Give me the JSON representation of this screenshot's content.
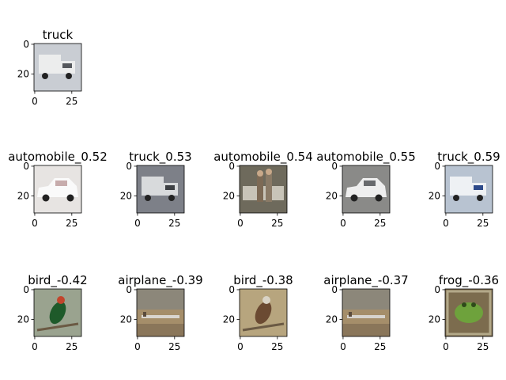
{
  "chart_data": {
    "type": "image-grid",
    "x_ticks": [
      "0",
      "25"
    ],
    "y_ticks": [
      "0",
      "20"
    ],
    "panels": [
      {
        "title": "truck",
        "subject": "white truck",
        "bg": "#c9cdd3",
        "main": "#eceded",
        "accent": "#55585d"
      },
      {
        "title": "automobile_0.52",
        "subject": "white car",
        "bg": "#e7e4e2",
        "main": "#fafafa",
        "accent": "#b08a8a"
      },
      {
        "title": "truck_0.53",
        "subject": "white truck",
        "bg": "#7d8088",
        "main": "#d8dadc",
        "accent": "#3d4044"
      },
      {
        "title": "automobile_0.54",
        "subject": "people by car",
        "bg": "#6e6a5c",
        "main": "#c8c4b8",
        "accent": "#7d6a55"
      },
      {
        "title": "automobile_0.55",
        "subject": "silver car",
        "bg": "#8a8a88",
        "main": "#eeeeee",
        "accent": "#2f3236"
      },
      {
        "title": "truck_0.59",
        "subject": "white truck",
        "bg": "#b8c3d1",
        "main": "#eef1f4",
        "accent": "#2d4a8a"
      },
      {
        "title": "bird_-0.42",
        "subject": "bird",
        "bg": "#9aa38f",
        "main": "#1e5a2a",
        "accent": "#c2452c"
      },
      {
        "title": "airplane_-0.39",
        "subject": "airplane",
        "bg": "#a58e6a",
        "main": "#d9d5cf",
        "accent": "#5a4b3c"
      },
      {
        "title": "bird_-0.38",
        "subject": "bird",
        "bg": "#b7a57e",
        "main": "#6b4a32",
        "accent": "#d9d3c6"
      },
      {
        "title": "airplane_-0.37",
        "subject": "airplane",
        "bg": "#a58e6a",
        "main": "#d7d3cd",
        "accent": "#5a4b3c"
      },
      {
        "title": "frog_-0.36",
        "subject": "frog",
        "bg": "#7c6c4e",
        "main": "#6ea23c",
        "accent": "#b3a989"
      }
    ]
  }
}
